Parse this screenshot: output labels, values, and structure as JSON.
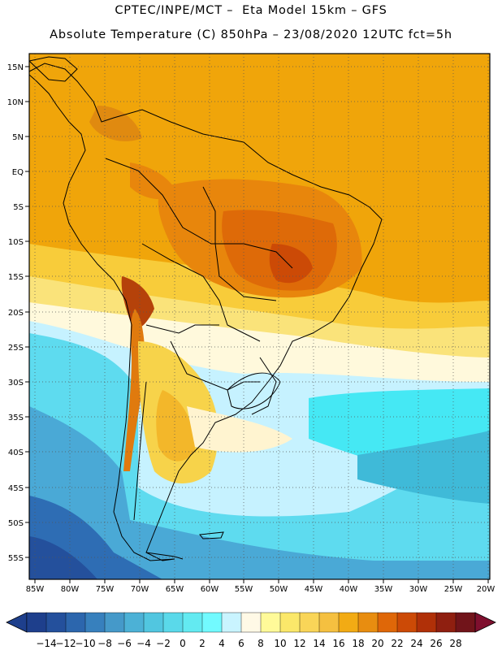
{
  "title_line1": "CPTEC/INPE/MCT –  Eta Model 15km – GFS",
  "title_line2": "Absolute Temperature (C) 850hPa – 23/08/2020 12UTC fct=5h",
  "lat_labels": [
    "15N",
    "10N",
    "5N",
    "EQ",
    "5S",
    "10S",
    "15S",
    "20S",
    "25S",
    "30S",
    "35S",
    "40S",
    "45S",
    "50S",
    "55S"
  ],
  "lon_labels": [
    "85W",
    "80W",
    "75W",
    "70W",
    "65W",
    "60W",
    "55W",
    "50W",
    "45W",
    "40W",
    "35W",
    "30W",
    "25W",
    "20W"
  ],
  "colorbar": {
    "labels": [
      "-14",
      "-12",
      "-10",
      "-8",
      "-6",
      "-4",
      "-2",
      "0",
      "2",
      "4",
      "6",
      "8",
      "10",
      "12",
      "14",
      "16",
      "18",
      "20",
      "22",
      "24",
      "26",
      "28"
    ],
    "colors": [
      "#1e3f8c",
      "#24509c",
      "#2c66ad",
      "#3780bd",
      "#4599c9",
      "#4cb1d6",
      "#51c6e0",
      "#5ad9ea",
      "#63eaf1",
      "#72faff",
      "#c9f4ff",
      "#fff9e6",
      "#fffa99",
      "#fbe86a",
      "#f9d558",
      "#f5c040",
      "#f2ab14",
      "#e88d10",
      "#df6708",
      "#cc4a06",
      "#b03008",
      "#8f1f10",
      "#71141a"
    ],
    "under_color": "#1e3f8c",
    "over_color": "#7f0f2e"
  },
  "ocean_color": "#f0a50a"
}
